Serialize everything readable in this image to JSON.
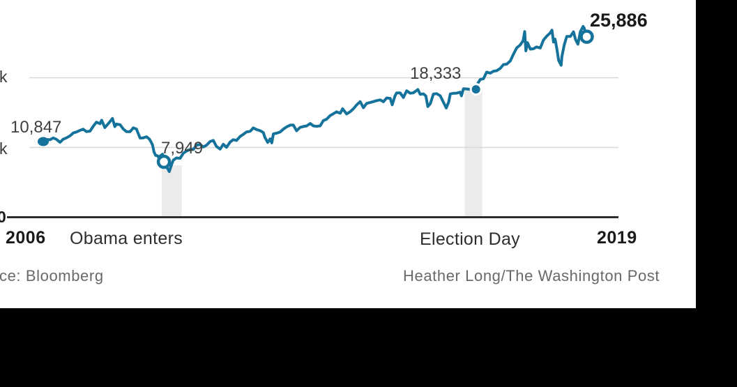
{
  "colors": {
    "line": "#15739b",
    "grid": "#d8d8d8",
    "axis": "#2e2e2e",
    "band": "#ebebeb",
    "background": "#ffffff",
    "letterbox": "#000000",
    "value_label": "#3f3f3f",
    "dark_label": "#1a1a1a",
    "credit_gray": "#696969"
  },
  "labels": {
    "tick_top": "k",
    "tick_mid": "k",
    "tick_zero": "0",
    "start_value": "10,847",
    "trough_value": "7,949",
    "election_value": "18,333",
    "end_value": "25,886",
    "year_left": "2006",
    "year_right": "2019",
    "obama_annotation": "Obama enters",
    "election_annotation": "Election Day",
    "source": "ce: Bloomberg",
    "credit": "Heather Long/The Washington Post"
  },
  "chart_data": {
    "type": "line",
    "title": "",
    "xlabel": "",
    "ylabel": "",
    "x_range_years": [
      2006.04,
      2019.62
    ],
    "ylim": [
      0,
      30000
    ],
    "grid": "horizontal",
    "y_axis": {
      "tick_values": [
        20000,
        10000,
        0
      ],
      "tick_labels_visible": [
        "k",
        "k",
        "0"
      ],
      "note": "left edge of image is cropped; only final character of 20k/10k labels visible"
    },
    "x_axis": {
      "tick_labels_visible": [
        "2006",
        "2019"
      ],
      "annotations": [
        "Obama enters",
        "Election Day"
      ]
    },
    "markers": [
      {
        "label": "10,847",
        "year": 2006.04,
        "value": 10847,
        "style": "dot"
      },
      {
        "label": "7,949",
        "year": 2009.055,
        "value": 7949,
        "style": "ring"
      },
      {
        "label": "18,333",
        "year": 2016.853,
        "value": 18333,
        "style": "dot-halo"
      },
      {
        "label": "25,886",
        "year": 2019.62,
        "value": 25886,
        "style": "ring"
      }
    ],
    "bands": [
      {
        "name": "obama-enters-band",
        "from": 2009.0,
        "to": 2009.5,
        "top_value": 7450
      },
      {
        "name": "election-day-band",
        "from": 2016.57,
        "to": 2017.01,
        "top_value": 18333
      }
    ],
    "points": [
      [
        2006.04,
        10847
      ],
      [
        2006.12,
        11150
      ],
      [
        2006.21,
        11109
      ],
      [
        2006.29,
        11367
      ],
      [
        2006.37,
        11168
      ],
      [
        2006.46,
        10739
      ],
      [
        2006.54,
        11186
      ],
      [
        2006.62,
        11381
      ],
      [
        2006.71,
        11679
      ],
      [
        2006.79,
        12080
      ],
      [
        2006.87,
        12222
      ],
      [
        2006.96,
        12463
      ],
      [
        2007.04,
        12622
      ],
      [
        2007.12,
        12269
      ],
      [
        2007.21,
        12354
      ],
      [
        2007.29,
        13063
      ],
      [
        2007.37,
        13628
      ],
      [
        2007.46,
        13409
      ],
      [
        2007.5,
        13907
      ],
      [
        2007.58,
        12846
      ],
      [
        2007.67,
        13450
      ],
      [
        2007.77,
        14164
      ],
      [
        2007.83,
        12987
      ],
      [
        2007.87,
        13371
      ],
      [
        2007.96,
        13265
      ],
      [
        2008.04,
        12650
      ],
      [
        2008.12,
        12266
      ],
      [
        2008.21,
        12262
      ],
      [
        2008.29,
        12820
      ],
      [
        2008.37,
        12638
      ],
      [
        2008.46,
        11350
      ],
      [
        2008.54,
        11378
      ],
      [
        2008.62,
        11544
      ],
      [
        2008.69,
        11220
      ],
      [
        2008.73,
        10850
      ],
      [
        2008.77,
        10365
      ],
      [
        2008.81,
        9325
      ],
      [
        2008.85,
        8852
      ],
      [
        2008.89,
        8829
      ],
      [
        2008.92,
        8626
      ],
      [
        2008.96,
        8776
      ],
      [
        2009.02,
        9035
      ],
      [
        2009.055,
        7949
      ],
      [
        2009.1,
        7365
      ],
      [
        2009.14,
        7063
      ],
      [
        2009.19,
        6547
      ],
      [
        2009.25,
        7609
      ],
      [
        2009.29,
        8168
      ],
      [
        2009.37,
        8500
      ],
      [
        2009.46,
        8447
      ],
      [
        2009.54,
        9172
      ],
      [
        2009.62,
        9496
      ],
      [
        2009.71,
        9712
      ],
      [
        2009.79,
        9713
      ],
      [
        2009.87,
        10345
      ],
      [
        2009.96,
        10428
      ],
      [
        2010.04,
        10067
      ],
      [
        2010.12,
        10325
      ],
      [
        2010.21,
        10857
      ],
      [
        2010.29,
        11009
      ],
      [
        2010.37,
        10137
      ],
      [
        2010.46,
        9774
      ],
      [
        2010.54,
        10466
      ],
      [
        2010.62,
        10015
      ],
      [
        2010.71,
        10788
      ],
      [
        2010.79,
        11118
      ],
      [
        2010.87,
        11006
      ],
      [
        2010.96,
        11578
      ],
      [
        2011.04,
        11892
      ],
      [
        2011.12,
        12226
      ],
      [
        2011.21,
        12320
      ],
      [
        2011.29,
        12811
      ],
      [
        2011.37,
        12570
      ],
      [
        2011.46,
        12414
      ],
      [
        2011.54,
        12143
      ],
      [
        2011.58,
        11444
      ],
      [
        2011.65,
        10720
      ],
      [
        2011.71,
        11240
      ],
      [
        2011.75,
        10655
      ],
      [
        2011.79,
        11955
      ],
      [
        2011.87,
        12046
      ],
      [
        2011.96,
        12218
      ],
      [
        2012.04,
        12633
      ],
      [
        2012.12,
        12952
      ],
      [
        2012.21,
        13212
      ],
      [
        2012.29,
        13214
      ],
      [
        2012.37,
        12393
      ],
      [
        2012.46,
        12880
      ],
      [
        2012.54,
        13009
      ],
      [
        2012.62,
        13091
      ],
      [
        2012.71,
        13437
      ],
      [
        2012.79,
        13096
      ],
      [
        2012.87,
        13026
      ],
      [
        2012.96,
        13104
      ],
      [
        2013.04,
        13861
      ],
      [
        2013.12,
        14054
      ],
      [
        2013.21,
        14579
      ],
      [
        2013.29,
        14840
      ],
      [
        2013.37,
        15116
      ],
      [
        2013.46,
        14910
      ],
      [
        2013.52,
        15548
      ],
      [
        2013.62,
        14810
      ],
      [
        2013.71,
        15130
      ],
      [
        2013.79,
        15546
      ],
      [
        2013.87,
        16086
      ],
      [
        2013.96,
        16577
      ],
      [
        2014.04,
        15699
      ],
      [
        2014.12,
        16322
      ],
      [
        2014.21,
        16458
      ],
      [
        2014.29,
        16581
      ],
      [
        2014.37,
        16717
      ],
      [
        2014.46,
        16827
      ],
      [
        2014.54,
        16563
      ],
      [
        2014.62,
        17098
      ],
      [
        2014.71,
        17043
      ],
      [
        2014.76,
        16117
      ],
      [
        2014.83,
        17391
      ],
      [
        2014.87,
        17828
      ],
      [
        2014.96,
        17823
      ],
      [
        2015.04,
        17165
      ],
      [
        2015.12,
        18133
      ],
      [
        2015.21,
        17776
      ],
      [
        2015.29,
        17841
      ],
      [
        2015.4,
        18312
      ],
      [
        2015.46,
        17620
      ],
      [
        2015.54,
        17690
      ],
      [
        2015.6,
        17403
      ],
      [
        2015.65,
        15871
      ],
      [
        2015.71,
        16285
      ],
      [
        2015.79,
        17664
      ],
      [
        2015.87,
        17720
      ],
      [
        2015.96,
        17425
      ],
      [
        2016.04,
        16466
      ],
      [
        2016.11,
        15660
      ],
      [
        2016.17,
        16517
      ],
      [
        2016.21,
        17685
      ],
      [
        2016.29,
        17774
      ],
      [
        2016.37,
        17787
      ],
      [
        2016.46,
        17930
      ],
      [
        2016.49,
        17400
      ],
      [
        2016.54,
        18432
      ],
      [
        2016.62,
        18401
      ],
      [
        2016.71,
        18308
      ],
      [
        2016.79,
        18142
      ],
      [
        2016.853,
        18333
      ],
      [
        2016.89,
        19124
      ],
      [
        2016.96,
        19763
      ],
      [
        2017.04,
        19864
      ],
      [
        2017.12,
        20812
      ],
      [
        2017.21,
        20663
      ],
      [
        2017.29,
        20941
      ],
      [
        2017.37,
        21009
      ],
      [
        2017.46,
        21350
      ],
      [
        2017.54,
        21891
      ],
      [
        2017.62,
        21948
      ],
      [
        2017.71,
        22405
      ],
      [
        2017.79,
        23377
      ],
      [
        2017.87,
        24272
      ],
      [
        2017.96,
        24719
      ],
      [
        2018.03,
        25296
      ],
      [
        2018.07,
        26617
      ],
      [
        2018.1,
        23860
      ],
      [
        2018.14,
        25029
      ],
      [
        2018.21,
        24103
      ],
      [
        2018.29,
        24163
      ],
      [
        2018.37,
        24416
      ],
      [
        2018.46,
        24271
      ],
      [
        2018.54,
        25415
      ],
      [
        2018.62,
        25965
      ],
      [
        2018.71,
        26458
      ],
      [
        2018.75,
        26828
      ],
      [
        2018.79,
        25116
      ],
      [
        2018.83,
        25538
      ],
      [
        2018.87,
        24286
      ],
      [
        2018.92,
        22445
      ],
      [
        2018.98,
        21792
      ],
      [
        2019.0,
        23062
      ],
      [
        2019.06,
        24737
      ],
      [
        2019.12,
        25916
      ],
      [
        2019.21,
        25929
      ],
      [
        2019.29,
        26593
      ],
      [
        2019.34,
        25490
      ],
      [
        2019.4,
        24815
      ],
      [
        2019.46,
        26600
      ],
      [
        2019.53,
        27359
      ],
      [
        2019.56,
        27088
      ],
      [
        2019.58,
        26485
      ],
      [
        2019.6,
        25479
      ],
      [
        2019.62,
        25886
      ]
    ]
  }
}
